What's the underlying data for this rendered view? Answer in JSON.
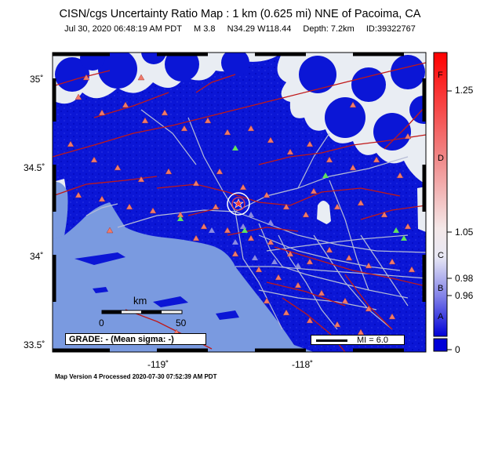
{
  "header": {
    "title": "CISN/cgs Uncertainty Ratio Map : 1 km (0.625 mi) NNE of Pacoima, CA",
    "date": "Jul 30, 2020 06:48:19 AM PDT",
    "magnitude": "M 3.8",
    "coords": "N34.29 W118.44",
    "depth": "Depth: 7.2km",
    "event_id": "ID:39322767"
  },
  "axes": {
    "lat_labels": [
      "35˚",
      "34.5˚",
      "34˚",
      "33.5˚"
    ],
    "lon_labels": [
      "-119˚",
      "-118˚"
    ]
  },
  "colorbar": {
    "grades": [
      "F",
      "D",
      "C",
      "B",
      "A"
    ],
    "ticks": [
      "1.25",
      "1.05",
      "0.98",
      "0.96",
      "0"
    ]
  },
  "scale": {
    "unit": "km",
    "start": "0",
    "end": "50"
  },
  "grade_box": "GRADE: - (Mean sigma: -)",
  "mi_legend": "MI = 6.0",
  "footer": "Map Version 4 Processed 2020-07-30 07:52:39 AM PDT",
  "colors": {
    "ocean": "#7a9ae0",
    "ratio_low": "#0a14d4",
    "ratio_none": "#e8ecf2",
    "station": "#f07a6a"
  }
}
